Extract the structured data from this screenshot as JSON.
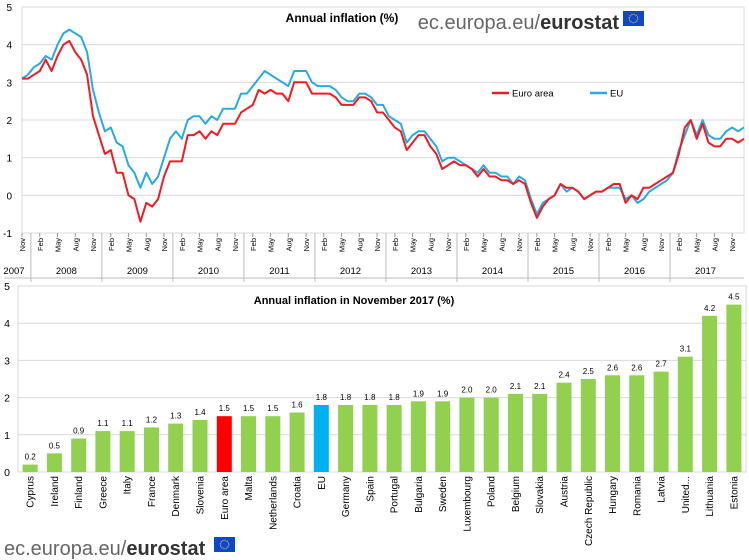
{
  "colors": {
    "euro_area": "#ee1c25",
    "eu": "#29abe2",
    "bars": "#92d050",
    "bar_euro_area": "#ff0000",
    "bar_eu": "#00b0f0",
    "grid": "#d9d9d9",
    "brand_blue": "#0e47cb"
  },
  "branding": {
    "prefix": "ec.europa.eu/",
    "brand": "eurostat",
    "flag_icon": "eu-flag-icon"
  },
  "chart_data": [
    {
      "type": "line",
      "title": "Annual inflation (%)",
      "xlabel": "",
      "ylabel": "",
      "ylim": [
        -1,
        5
      ],
      "yticks": [
        -1,
        0,
        1,
        2,
        3,
        4,
        5
      ],
      "grid": true,
      "legend_position": "center-top",
      "start": "2007-11",
      "month_tick_labels": [
        "Nov",
        "Feb",
        "May",
        "Aug"
      ],
      "years": [
        "2007",
        "2008",
        "2009",
        "2010",
        "2011",
        "2012",
        "2013",
        "2014",
        "2015",
        "2016",
        "2017"
      ],
      "series": [
        {
          "name": "Euro area",
          "values": [
            3.1,
            3.1,
            3.2,
            3.3,
            3.6,
            3.3,
            3.7,
            4.0,
            4.1,
            3.8,
            3.6,
            3.2,
            2.1,
            1.6,
            1.1,
            1.2,
            0.6,
            0.6,
            0.0,
            -0.1,
            -0.7,
            -0.2,
            -0.3,
            -0.1,
            0.5,
            0.9,
            0.9,
            0.9,
            1.6,
            1.6,
            1.7,
            1.5,
            1.7,
            1.6,
            1.9,
            1.9,
            1.9,
            2.2,
            2.3,
            2.4,
            2.8,
            2.7,
            2.8,
            2.7,
            2.7,
            2.5,
            3.0,
            3.0,
            3.0,
            2.7,
            2.7,
            2.7,
            2.7,
            2.6,
            2.4,
            2.4,
            2.4,
            2.6,
            2.6,
            2.5,
            2.2,
            2.2,
            2.0,
            1.8,
            1.7,
            1.2,
            1.4,
            1.6,
            1.6,
            1.3,
            1.1,
            0.7,
            0.8,
            0.9,
            0.8,
            0.8,
            0.7,
            0.5,
            0.7,
            0.5,
            0.5,
            0.4,
            0.4,
            0.3,
            0.4,
            0.3,
            -0.2,
            -0.6,
            -0.3,
            -0.1,
            0.0,
            0.3,
            0.2,
            0.2,
            0.1,
            -0.1,
            0.0,
            0.1,
            0.1,
            0.2,
            0.3,
            0.3,
            -0.2,
            0.0,
            -0.1,
            0.2,
            0.2,
            0.3,
            0.4,
            0.5,
            0.6,
            1.1,
            1.8,
            2.0,
            1.5,
            1.9,
            1.4,
            1.3,
            1.3,
            1.5,
            1.5,
            1.4,
            1.5
          ]
        },
        {
          "name": "EU",
          "values": [
            3.1,
            3.2,
            3.4,
            3.5,
            3.7,
            3.6,
            4.0,
            4.3,
            4.4,
            4.3,
            4.2,
            3.8,
            2.8,
            2.2,
            1.7,
            1.8,
            1.4,
            1.3,
            0.8,
            0.6,
            0.2,
            0.6,
            0.3,
            0.5,
            1.0,
            1.5,
            1.7,
            1.5,
            2.0,
            2.1,
            2.1,
            1.9,
            2.1,
            2.0,
            2.3,
            2.3,
            2.3,
            2.7,
            2.7,
            2.9,
            3.1,
            3.3,
            3.2,
            3.1,
            3.0,
            2.9,
            3.3,
            3.3,
            3.3,
            3.0,
            2.9,
            2.9,
            2.9,
            2.8,
            2.6,
            2.5,
            2.5,
            2.7,
            2.7,
            2.6,
            2.4,
            2.4,
            2.1,
            2.0,
            1.9,
            1.4,
            1.6,
            1.7,
            1.7,
            1.5,
            1.3,
            0.9,
            1.0,
            1.0,
            0.9,
            0.8,
            0.7,
            0.6,
            0.8,
            0.6,
            0.6,
            0.5,
            0.5,
            0.3,
            0.5,
            0.4,
            -0.1,
            -0.5,
            -0.2,
            -0.1,
            0.0,
            0.3,
            0.1,
            0.2,
            0.1,
            -0.1,
            0.0,
            0.1,
            0.1,
            0.2,
            0.2,
            0.2,
            -0.1,
            0.0,
            -0.2,
            -0.1,
            0.1,
            0.2,
            0.3,
            0.4,
            0.6,
            1.2,
            1.6,
            2.0,
            1.6,
            2.0,
            1.6,
            1.5,
            1.5,
            1.7,
            1.8,
            1.7,
            1.8
          ]
        }
      ]
    },
    {
      "type": "bar",
      "title": "Annual inflation in November 2017 (%)",
      "xlabel": "",
      "ylabel": "",
      "ylim": [
        0,
        5
      ],
      "yticks": [
        0,
        1,
        2,
        3,
        4,
        5
      ],
      "grid": true,
      "categories": [
        "Cyprus",
        "Ireland",
        "Finland",
        "Greece",
        "Italy",
        "France",
        "Denmark",
        "Slovenia",
        "Euro area",
        "Malta",
        "Netherlands",
        "Croatia",
        "EU",
        "Germany",
        "Spain",
        "Portugal",
        "Bulgaria",
        "Sweden",
        "Luxembourg",
        "Poland",
        "Belgium",
        "Slovakia",
        "Austria",
        "Czech Republic",
        "Hungary",
        "Romania",
        "Latvia",
        "United...",
        "Lithuania",
        "Estonia"
      ],
      "values": [
        0.2,
        0.5,
        0.9,
        1.1,
        1.1,
        1.2,
        1.3,
        1.4,
        1.5,
        1.5,
        1.5,
        1.6,
        1.8,
        1.8,
        1.8,
        1.8,
        1.9,
        1.9,
        2.0,
        2.0,
        2.1,
        2.1,
        2.4,
        2.5,
        2.6,
        2.6,
        2.7,
        3.1,
        4.2,
        4.5
      ],
      "value_labels": [
        "0.2",
        "0.5",
        "0.9",
        "1.1",
        "1.1",
        "1.2",
        "1.3",
        "1.4",
        "1.5",
        "1.5",
        "1.5",
        "1.6",
        "1.8",
        "1.8",
        "1.8",
        "1.8",
        "1.9",
        "1.9",
        "2.0",
        "2.0",
        "2.1",
        "2.1",
        "2.4",
        "2.5",
        "2.6",
        "2.6",
        "2.7",
        "3.1",
        "4.2",
        "4.5"
      ]
    }
  ]
}
